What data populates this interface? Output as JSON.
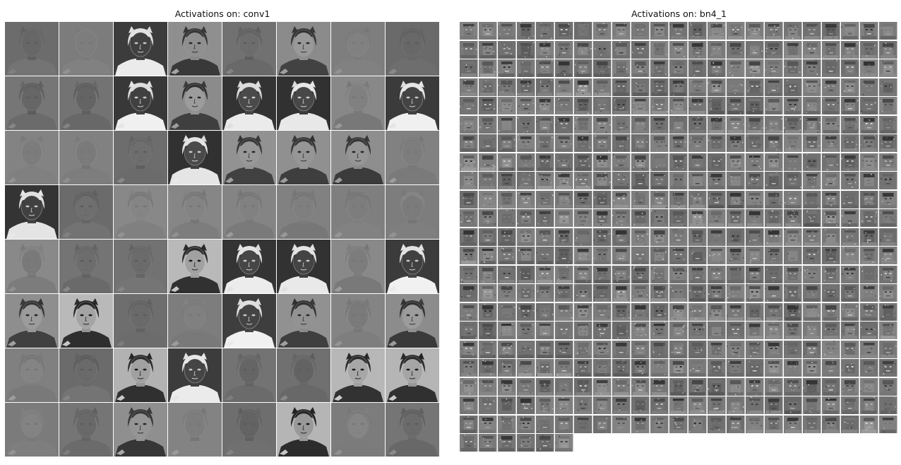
{
  "panels": [
    {
      "title": "Activations on: conv1",
      "columns": 8,
      "tile_count": 64,
      "tiles": [
        "dim",
        "flat",
        "light-hat",
        "mid",
        "dim",
        "mid",
        "flat",
        "dim",
        "dim",
        "dim",
        "light-hat",
        "mid",
        "light-hat",
        "light-hat",
        "flat",
        "light-hat",
        "flat",
        "flat",
        "dim",
        "light-hat",
        "mid",
        "mid",
        "mid",
        "flat",
        "light-hat",
        "dim",
        "flat",
        "flat",
        "flat",
        "flat",
        "flat",
        "flat",
        "flat",
        "dim",
        "dim",
        "dark",
        "light-hat",
        "light-hat",
        "flat",
        "light-hat",
        "mid",
        "dark",
        "dim",
        "flat",
        "light-hat",
        "mid",
        "flat",
        "mid",
        "flat",
        "dim",
        "dark",
        "light-hat",
        "dim",
        "dim",
        "dark",
        "dark",
        "flat",
        "dim",
        "mid",
        "flat",
        "dim",
        "dark",
        "flat",
        "dim"
      ]
    },
    {
      "title": "Activations on: bn4_1",
      "columns": 23,
      "tile_count": 512
    }
  ]
}
